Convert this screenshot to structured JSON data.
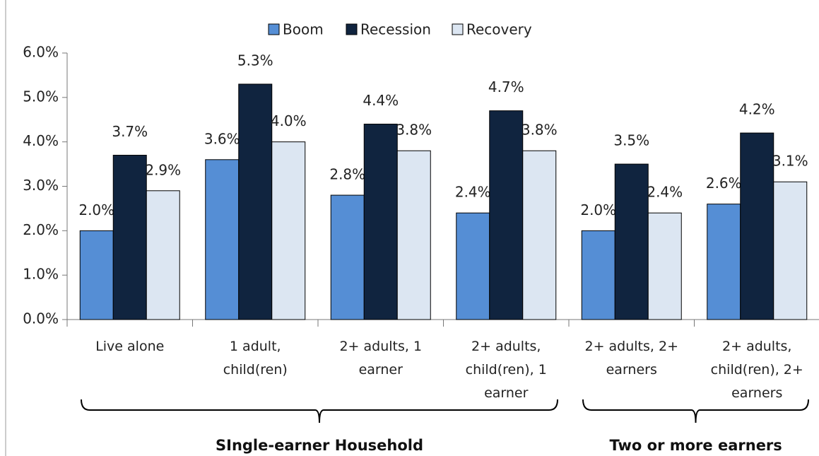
{
  "chart_data": {
    "type": "bar",
    "categories": [
      "Live alone",
      "1 adult, child(ren)",
      "2+ adults, 1 earner",
      "2+ adults, child(ren), 1 earner",
      "2+ adults, 2+ earners",
      "2+ adults, child(ren), 2+ earners"
    ],
    "series": [
      {
        "name": "Boom",
        "color": "#558ed5",
        "values": [
          2.0,
          3.6,
          2.8,
          2.4,
          2.0,
          2.6
        ],
        "value_labels": [
          "2.0%",
          "3.6%",
          "2.8%",
          "2.4%",
          "2.0%",
          "2.6%"
        ]
      },
      {
        "name": "Recession",
        "color": "#10243f",
        "values": [
          3.7,
          5.3,
          4.4,
          4.7,
          3.5,
          4.2
        ],
        "value_labels": [
          "3.7%",
          "5.3%",
          "4.4%",
          "4.7%",
          "3.5%",
          "4.2%"
        ]
      },
      {
        "name": "Recovery",
        "color": "#dce6f2",
        "values": [
          2.9,
          4.0,
          3.8,
          3.8,
          2.4,
          3.1
        ],
        "value_labels": [
          "2.9%",
          "4.0%",
          "3.8%",
          "3.8%",
          "2.4%",
          "3.1%"
        ]
      }
    ],
    "ylim": [
      0,
      6
    ],
    "yticks": [
      {
        "value": 0,
        "label": "0.0%"
      },
      {
        "value": 1,
        "label": "1.0%"
      },
      {
        "value": 2,
        "label": "2.0%"
      },
      {
        "value": 3,
        "label": "3.0%"
      },
      {
        "value": 4,
        "label": "4.0%"
      },
      {
        "value": 5,
        "label": "5.0%"
      },
      {
        "value": 6,
        "label": "6.0%"
      }
    ],
    "grid": false,
    "legend": "top",
    "groups": [
      {
        "label": "SIngle-earner Household",
        "members": [
          "Live alone",
          "1 adult, child(ren)",
          "2+ adults, 1 earner",
          "2+ adults, child(ren), 1 earner"
        ]
      },
      {
        "label": "Two or more earners",
        "members": [
          "2+ adults, 2+ earners",
          "2+ adults, child(ren), 2+ earners"
        ]
      }
    ]
  }
}
